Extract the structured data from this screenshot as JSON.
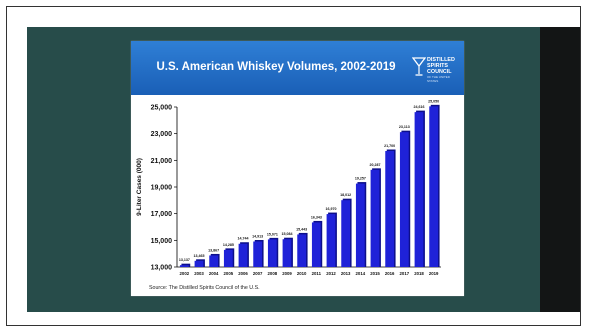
{
  "header": {
    "title": "U.S. American Whiskey Volumes, 2002-2019",
    "logo_lines": [
      "DISTILLED",
      "SPIRITS",
      "COUNCIL"
    ],
    "logo_sub": "OF THE UNITED STATES"
  },
  "source": "Source:  The Distilled Spirits Council of the U.S.",
  "colors": {
    "teal": "#274c4a",
    "header_blue": "#1f68c2",
    "bar": "#1f22d8"
  },
  "chart_data": {
    "type": "bar",
    "title": "U.S. American Whiskey Volumes, 2002-2019",
    "xlabel": "",
    "ylabel": "9-Liter Cases (000)",
    "ylim": [
      13000,
      25000
    ],
    "yticks": [
      13000,
      15000,
      17000,
      19000,
      21000,
      23000,
      25000
    ],
    "ytick_labels": [
      "13,000",
      "15,000",
      "17,000",
      "19,000",
      "21,000",
      "23,000",
      "25,000"
    ],
    "categories": [
      "2002",
      "2003",
      "2004",
      "2005",
      "2006",
      "2007",
      "2008",
      "2009",
      "2010",
      "2011",
      "2012",
      "2013",
      "2014",
      "2015",
      "2016",
      "2017",
      "2018",
      "2019"
    ],
    "values": [
      13137,
      13465,
      13867,
      14285,
      14744,
      14913,
      15071,
      15084,
      15443,
      16343,
      16970,
      18012,
      19257,
      20287,
      21700,
      23113,
      24616,
      25050
    ],
    "labels": [
      "13,137",
      "13,465",
      "13,867",
      "14,285",
      "14,744",
      "14,913",
      "15,071",
      "15,084",
      "15,443",
      "16,343",
      "16,970",
      "18,012",
      "19,257",
      "20,287",
      "21,700",
      "23,113",
      "24,616",
      "25,050"
    ],
    "grid": false,
    "legend": "none"
  }
}
